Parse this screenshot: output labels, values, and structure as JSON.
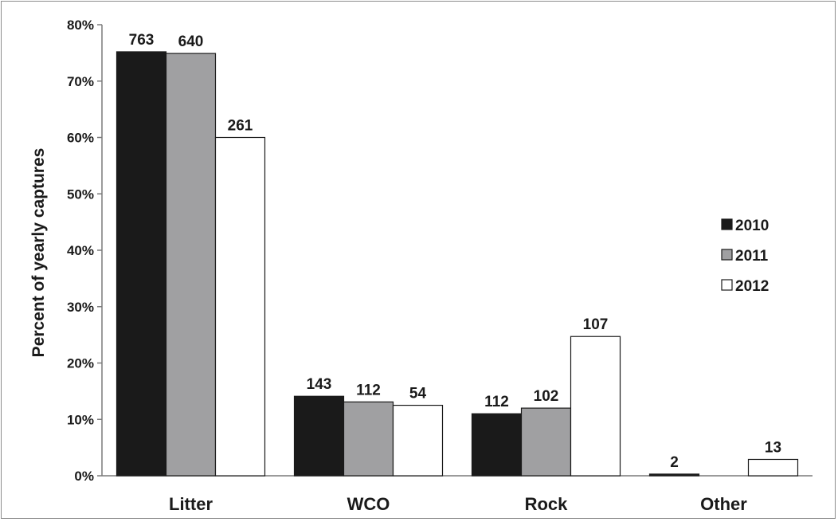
{
  "chart_data": {
    "type": "bar",
    "categories": [
      "Litter",
      "WCO",
      "Rock",
      "Other"
    ],
    "series": [
      {
        "name": "2010",
        "color": "#1a1a1a",
        "values": [
          75.2,
          14.1,
          11.0,
          0.3
        ],
        "labels": [
          "763",
          "143",
          "112",
          "2"
        ]
      },
      {
        "name": "2011",
        "color": "#a0a0a2",
        "values": [
          74.9,
          13.1,
          12.0,
          null
        ],
        "labels": [
          "640",
          "112",
          "102",
          ""
        ]
      },
      {
        "name": "2012",
        "color": "#ffffff",
        "values": [
          60.0,
          12.5,
          24.7,
          2.9
        ],
        "labels": [
          "261",
          "54",
          "107",
          "13"
        ]
      }
    ],
    "ylabel": "Percent of yearly captures",
    "ylim": [
      0,
      80
    ],
    "yticks": [
      0,
      10,
      20,
      30,
      40,
      50,
      60,
      70,
      80
    ],
    "ytick_labels": [
      "0%",
      "10%",
      "20%",
      "30%",
      "40%",
      "50%",
      "60%",
      "70%",
      "80%"
    ],
    "grid": false,
    "legend_position": "right"
  }
}
